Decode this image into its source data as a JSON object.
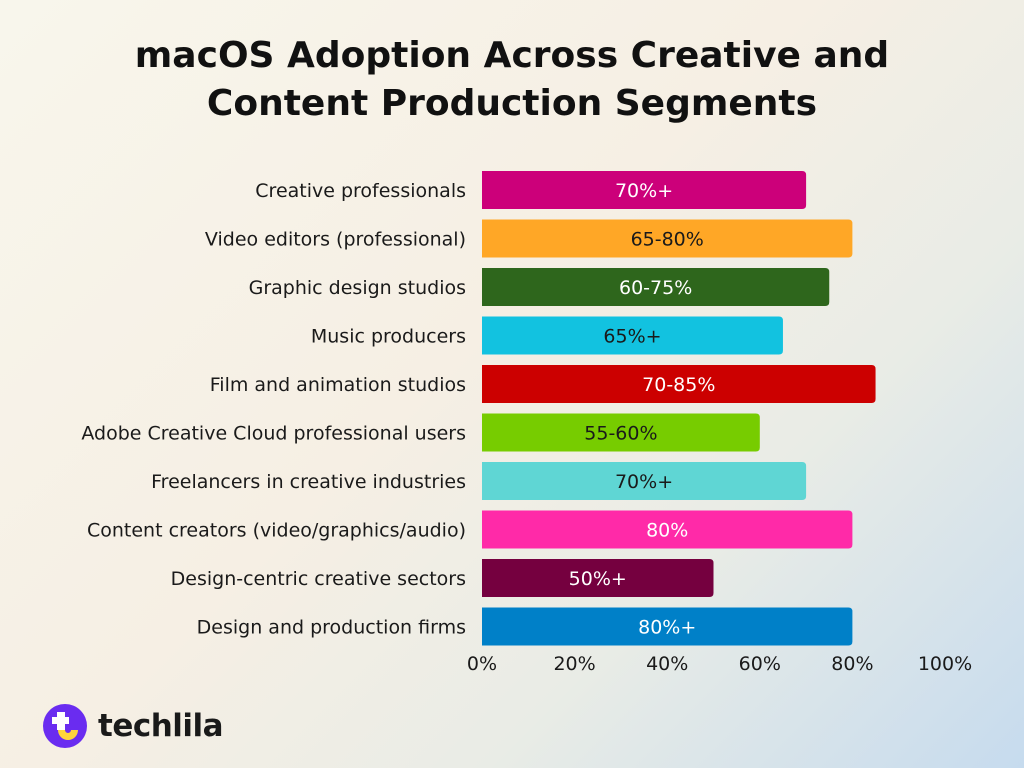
{
  "chart_data": {
    "type": "bar",
    "orientation": "horizontal",
    "title": "macOS Adoption Across Creative and Content Production Segments",
    "xlabel": "",
    "ylabel": "",
    "xlim": [
      0,
      100
    ],
    "x_ticks": [
      "0%",
      "20%",
      "40%",
      "60%",
      "80%",
      "100%"
    ],
    "grid": false,
    "categories": [
      "Creative professionals",
      "Video editors (professional)",
      "Graphic design studios",
      "Music producers",
      "Film and animation studios",
      "Adobe Creative Cloud professional users",
      "Freelancers in creative industries",
      "Content creators (video/graphics/audio)",
      "Design-centric creative sectors",
      "Design and production firms"
    ],
    "values": [
      70,
      80,
      75,
      65,
      85,
      60,
      70,
      80,
      50,
      80
    ],
    "data_labels": [
      "70%+",
      "65-80%",
      "60-75%",
      "65%+",
      "70-85%",
      "55-60%",
      "70%+",
      "80%",
      "50%+",
      "80%+"
    ],
    "colors": [
      "#cc007a",
      "#ffa726",
      "#2e661c",
      "#12c2e0",
      "#cc0000",
      "#77cc00",
      "#5fd6d4",
      "#ff2aa8",
      "#75003f",
      "#0080c8"
    ],
    "label_colors": [
      "#ffffff",
      "#1a1a1a",
      "#ffffff",
      "#1a1a1a",
      "#ffffff",
      "#1a1a1a",
      "#1a1a1a",
      "#ffffff",
      "#ffffff",
      "#ffffff"
    ]
  },
  "brand": {
    "name": "techlila",
    "colors": {
      "purple": "#6a2cf0",
      "yellow": "#ffd43b"
    }
  }
}
